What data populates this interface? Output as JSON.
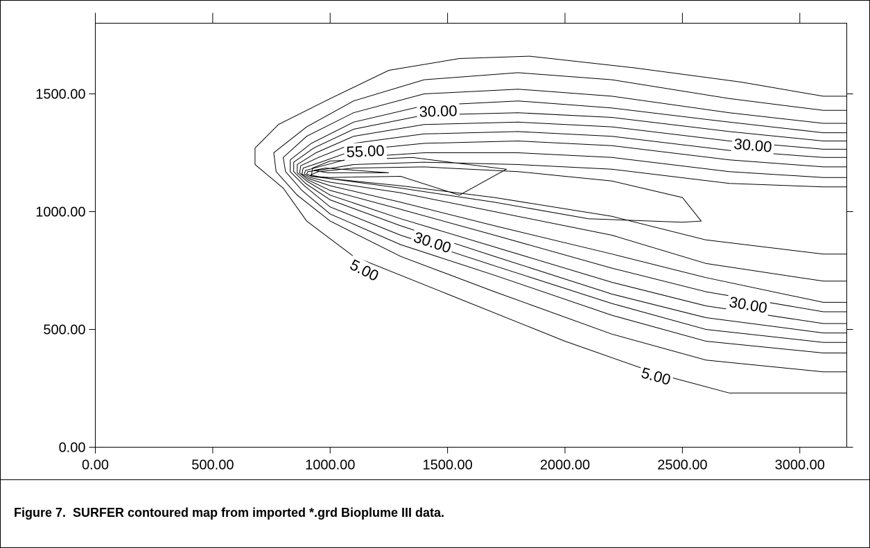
{
  "chart_data": {
    "type": "contour",
    "xlim": [
      0,
      3200
    ],
    "ylim": [
      0,
      1800
    ],
    "xticks": [
      {
        "value": 0,
        "label": "0.00"
      },
      {
        "value": 500,
        "label": "500.00"
      },
      {
        "value": 1000,
        "label": "1000.00"
      },
      {
        "value": 1500,
        "label": "1500.00"
      },
      {
        "value": 2000,
        "label": "2000.00"
      },
      {
        "value": 2500,
        "label": "2500.00"
      },
      {
        "value": 3000,
        "label": "3000.00"
      }
    ],
    "yticks": [
      {
        "value": 0,
        "label": "0.00"
      },
      {
        "value": 500,
        "label": "500.00"
      },
      {
        "value": 1000,
        "label": "1000.00"
      },
      {
        "value": 1500,
        "label": "1500.00"
      }
    ],
    "color": "#000000",
    "contours": [
      {
        "x": [
          3200,
          3100,
          2750,
          2300,
          1850,
          1550,
          1250,
          1000,
          780,
          680,
          680,
          800,
          900,
          1100,
          1500,
          2000,
          2400,
          2700,
          3200
        ],
        "y": [
          1490,
          1490,
          1550,
          1610,
          1660,
          1650,
          1600,
          1480,
          1370,
          1270,
          1200,
          1100,
          960,
          810,
          650,
          450,
          310,
          230,
          230
        ]
      },
      {
        "x": [
          3200,
          3100,
          2700,
          2200,
          1800,
          1400,
          1100,
          900,
          760,
          770,
          860,
          1000,
          1300,
          1700,
          2200,
          2600,
          3100,
          3200
        ],
        "y": [
          1430,
          1430,
          1480,
          1560,
          1590,
          1560,
          1470,
          1360,
          1250,
          1170,
          1070,
          960,
          810,
          660,
          480,
          370,
          320,
          320
        ]
      },
      {
        "x": [
          3200,
          3100,
          2700,
          2200,
          1800,
          1400,
          1100,
          900,
          800,
          810,
          880,
          1000,
          1300,
          1700,
          2200,
          2600,
          3100,
          3200
        ],
        "y": [
          1375,
          1375,
          1420,
          1490,
          1520,
          1500,
          1420,
          1320,
          1230,
          1170,
          1090,
          990,
          860,
          730,
          560,
          450,
          400,
          400
        ]
      },
      {
        "x": [
          3200,
          3100,
          2700,
          2200,
          1800,
          1400,
          1100,
          920,
          830,
          830,
          890,
          1000,
          1300,
          1700,
          2200,
          2600,
          3100,
          3200
        ],
        "y": [
          1335,
          1335,
          1380,
          1440,
          1470,
          1450,
          1380,
          1290,
          1220,
          1170,
          1110,
          1020,
          900,
          770,
          610,
          500,
          445,
          445
        ]
      },
      {
        "x": [
          3200,
          3100,
          2700,
          2200,
          1800,
          1400,
          1100,
          930,
          845,
          845,
          895,
          1000,
          1300,
          1700,
          2200,
          2600,
          3100,
          3200
        ],
        "y": [
          1300,
          1300,
          1340,
          1400,
          1420,
          1410,
          1350,
          1270,
          1210,
          1170,
          1120,
          1050,
          940,
          810,
          650,
          550,
          485,
          485
        ]
      },
      {
        "x": [
          3200,
          3100,
          2700,
          2200,
          1800,
          1400,
          1100,
          940,
          860,
          860,
          900,
          1000,
          1300,
          1700,
          2200,
          2600,
          3100,
          3200
        ],
        "y": [
          1265,
          1265,
          1300,
          1360,
          1380,
          1370,
          1320,
          1250,
          1200,
          1165,
          1130,
          1070,
          970,
          850,
          700,
          600,
          525,
          525
        ]
      },
      {
        "x": [
          3200,
          3100,
          2700,
          2200,
          1800,
          1400,
          1100,
          950,
          875,
          870,
          905,
          1000,
          1300,
          1700,
          2200,
          2600,
          3100,
          3200
        ],
        "y": [
          1230,
          1230,
          1260,
          1320,
          1340,
          1330,
          1290,
          1230,
          1195,
          1165,
          1135,
          1090,
          1010,
          900,
          760,
          660,
          575,
          575
        ]
      },
      {
        "x": [
          3200,
          3100,
          2700,
          2200,
          1800,
          1400,
          1100,
          960,
          885,
          880,
          910,
          1000,
          1300,
          1700,
          2200,
          2600,
          3100,
          3200
        ],
        "y": [
          1190,
          1190,
          1220,
          1280,
          1300,
          1290,
          1260,
          1210,
          1185,
          1160,
          1140,
          1110,
          1040,
          940,
          820,
          720,
          615,
          615
        ]
      },
      {
        "x": [
          3200,
          3100,
          2700,
          2200,
          1800,
          1400,
          1100,
          970,
          895,
          890,
          915,
          1000,
          1300,
          1700,
          2200,
          2600,
          3100,
          3200
        ],
        "y": [
          1145,
          1145,
          1170,
          1230,
          1250,
          1250,
          1230,
          1195,
          1175,
          1160,
          1145,
          1125,
          1080,
          1000,
          900,
          780,
          705,
          705
        ]
      },
      {
        "x": [
          3200,
          3100,
          2700,
          2200,
          1800,
          1400,
          1100,
          980,
          905,
          900,
          920,
          1000,
          1300,
          1700,
          2200,
          2600,
          3100,
          3200
        ],
        "y": [
          1105,
          1105,
          1120,
          1180,
          1200,
          1210,
          1200,
          1180,
          1170,
          1160,
          1150,
          1140,
          1110,
          1060,
          980,
          880,
          820,
          820
        ]
      },
      {
        "x": [
          915,
          1000,
          1300,
          1700,
          2100,
          2500,
          2580,
          2500,
          2200,
          1800,
          1400,
          1100,
          950,
          915
        ],
        "y": [
          1155,
          1140,
          1100,
          1040,
          970,
          955,
          960,
          1060,
          1130,
          1170,
          1190,
          1185,
          1170,
          1155
        ]
      },
      {
        "x": [
          920,
          1000,
          1300,
          1550,
          1750,
          1350,
          1000,
          925,
          920
        ],
        "y": [
          1150,
          1145,
          1150,
          1070,
          1180,
          1230,
          1215,
          1185,
          1150
        ]
      },
      {
        "x": [
          930,
          990,
          1250,
          980,
          930
        ],
        "y": [
          1175,
          1165,
          1165,
          1185,
          1175
        ]
      }
    ],
    "contour_labels": [
      {
        "label": "30.00",
        "x": 1460,
        "y": 1425
      },
      {
        "label": "55.00",
        "x": 1150,
        "y": 1255
      },
      {
        "label": "30.00",
        "x": 2800,
        "y": 1280
      },
      {
        "label": "30.00",
        "x": 1435,
        "y": 868
      },
      {
        "label": "5.00",
        "x": 1145,
        "y": 750
      },
      {
        "label": "30.00",
        "x": 2780,
        "y": 603
      },
      {
        "label": "5.00",
        "x": 2387,
        "y": 300
      }
    ]
  },
  "caption": "Figure 7.  SURFER contoured map from imported *.grd Bioplume III data."
}
